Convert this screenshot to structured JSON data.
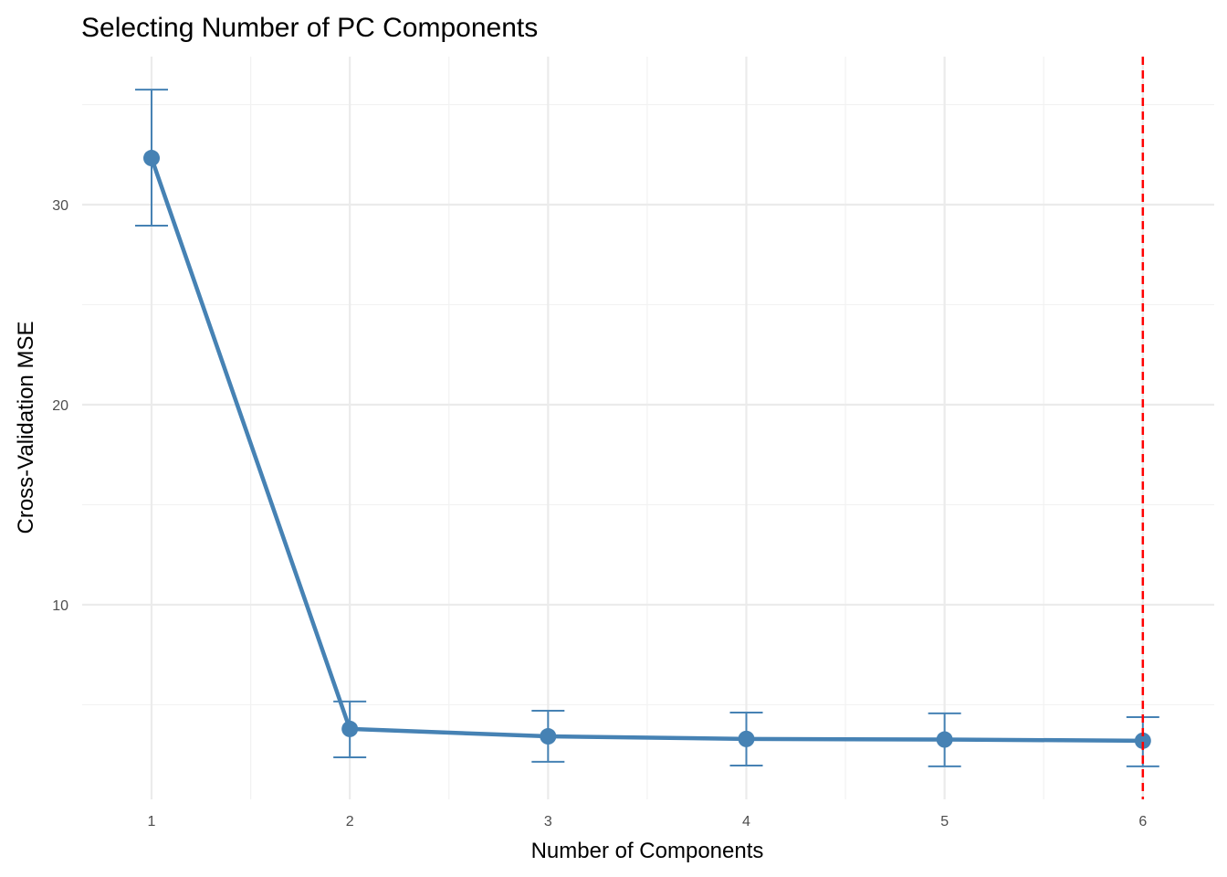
{
  "chart_data": {
    "type": "line",
    "title": "Selecting Number of PC Components",
    "xlabel": "Number of Components",
    "ylabel": "Cross-Validation MSE",
    "x": [
      1,
      2,
      3,
      4,
      5,
      6
    ],
    "x_ticks": [
      "1",
      "2",
      "3",
      "4",
      "5",
      "6"
    ],
    "y_ticks": [
      "10",
      "20",
      "30"
    ],
    "y_tick_values": [
      10,
      20,
      30
    ],
    "xlim": [
      0.65,
      6.36
    ],
    "ylim": [
      0.27,
      37.4
    ],
    "grid": true,
    "series": [
      {
        "name": "CV MSE",
        "color": "#4682B4",
        "values": [
          32.33,
          3.79,
          3.42,
          3.29,
          3.26,
          3.2
        ],
        "error_upper": [
          35.75,
          5.16,
          4.7,
          4.61,
          4.57,
          4.38
        ],
        "error_lower": [
          28.95,
          2.37,
          2.15,
          1.96,
          1.92,
          1.92
        ]
      }
    ],
    "annotations": [
      {
        "type": "vline",
        "x": 6,
        "color": "#FF0000",
        "style": "dashed"
      }
    ]
  }
}
